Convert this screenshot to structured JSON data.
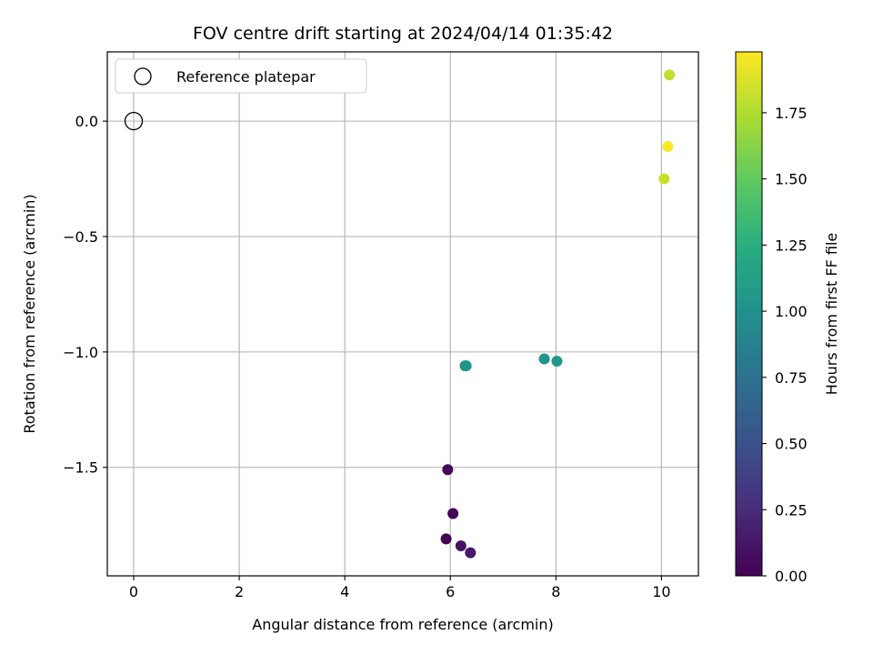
{
  "chart_data": {
    "type": "scatter",
    "title": "FOV centre drift starting at 2024/04/14 01:35:42",
    "xlabel": "Angular distance from reference (arcmin)",
    "ylabel": "Rotation from reference (arcmin)",
    "xlim": [
      -0.5,
      10.7
    ],
    "ylim": [
      -1.97,
      0.3
    ],
    "x_ticks": [
      0,
      2,
      4,
      6,
      8,
      10
    ],
    "x_tick_labels": [
      "0",
      "2",
      "4",
      "6",
      "8",
      "10"
    ],
    "y_ticks": [
      0.0,
      -0.5,
      -1.0,
      -1.5
    ],
    "y_tick_labels": [
      "0.0",
      "−0.5",
      "−1.0",
      "−1.5"
    ],
    "grid": true,
    "legend": {
      "placement": "upper-left",
      "entries": [
        {
          "label": "Reference platepar",
          "marker": "open-circle"
        }
      ]
    },
    "reference_point": {
      "x": 0,
      "y": 0
    },
    "colormap": "viridis",
    "colorbar": {
      "label": "Hours from first FF file",
      "range": [
        0,
        1.98
      ],
      "ticks": [
        0.0,
        0.25,
        0.5,
        0.75,
        1.0,
        1.25,
        1.5,
        1.75
      ],
      "tick_labels": [
        "0.00",
        "0.25",
        "0.50",
        "0.75",
        "1.00",
        "1.25",
        "1.50",
        "1.75"
      ]
    },
    "points": [
      {
        "x": 5.92,
        "y": -1.81,
        "c": 0.0
      },
      {
        "x": 6.05,
        "y": -1.7,
        "c": 0.02
      },
      {
        "x": 5.95,
        "y": -1.51,
        "c": 0.04
      },
      {
        "x": 6.2,
        "y": -1.84,
        "c": 0.1
      },
      {
        "x": 6.38,
        "y": -1.87,
        "c": 0.14
      },
      {
        "x": 6.28,
        "y": -1.06,
        "c": 1.0
      },
      {
        "x": 6.3,
        "y": -1.06,
        "c": 1.02
      },
      {
        "x": 7.78,
        "y": -1.03,
        "c": 1.04
      },
      {
        "x": 8.02,
        "y": -1.04,
        "c": 1.06
      },
      {
        "x": 10.05,
        "y": -0.25,
        "c": 1.82
      },
      {
        "x": 10.15,
        "y": 0.2,
        "c": 1.8
      },
      {
        "x": 10.12,
        "y": -0.11,
        "c": 1.97
      }
    ]
  }
}
